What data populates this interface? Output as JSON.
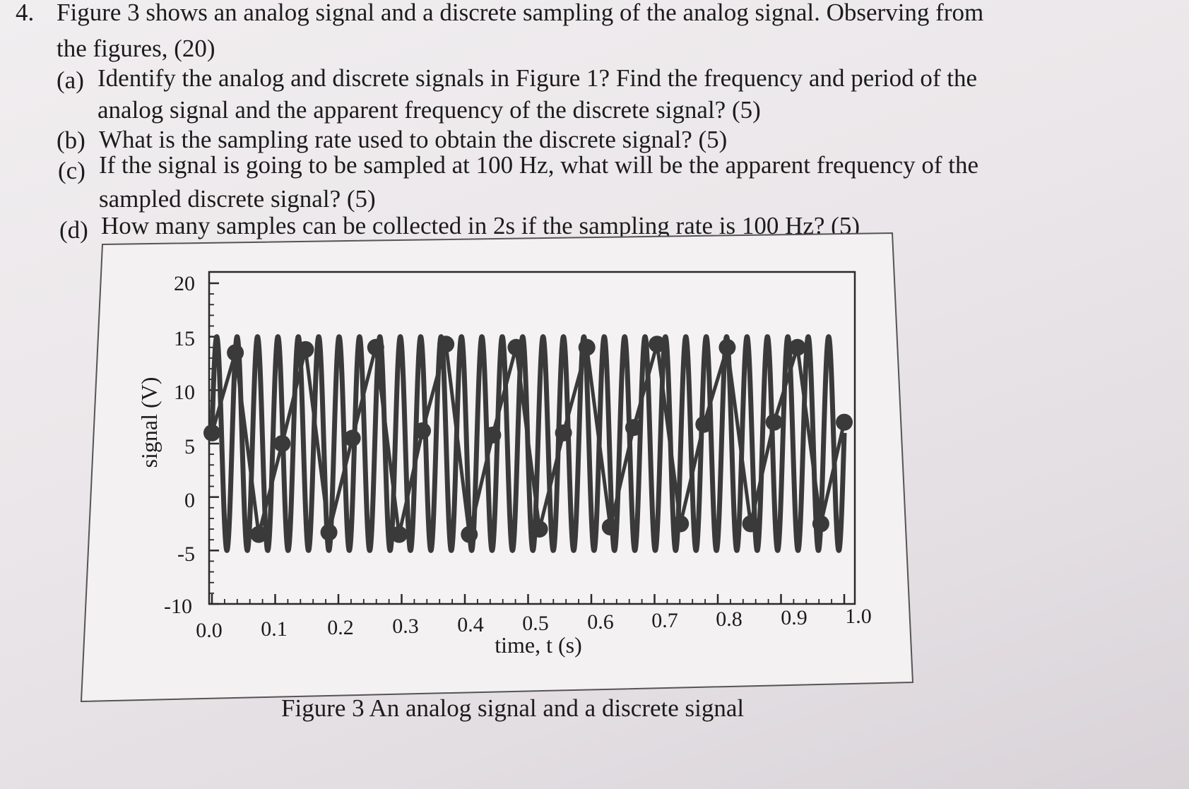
{
  "question": {
    "number": "4.",
    "intro_line1": "Figure 3 shows an analog signal and a discrete sampling of the analog signal. Observing from",
    "intro_line2": "the figures, (20)",
    "parts": [
      {
        "label": "(a)",
        "line1": "Identify the analog and discrete signals in Figure 1? Find the frequency and period of the",
        "line2": "analog signal and the apparent frequency of the discrete signal? (5)"
      },
      {
        "label": "(b)",
        "line1": "What is the sampling rate used to obtain the discrete signal? (5)",
        "line2": ""
      },
      {
        "label": "(c)",
        "line1": "If the signal is going to be sampled at 100 Hz, what will be the apparent frequency of the",
        "line2": "sampled discrete signal? (5)"
      },
      {
        "label": "(d)",
        "line1": "How many samples can be collected in 2s if the sampling rate is 100 Hz? (5)",
        "line2": ""
      }
    ]
  },
  "figure": {
    "caption": "Figure 3 An analog signal and a discrete signal"
  },
  "chart_data": {
    "type": "line",
    "title": "",
    "xlabel": "time, t (s)",
    "ylabel": "signal (V)",
    "xlim": [
      0.0,
      1.0
    ],
    "ylim": [
      -10,
      20
    ],
    "x_ticks": [
      "0.0",
      "0.1",
      "0.2",
      "0.3",
      "0.4",
      "0.5",
      "0.6",
      "0.7",
      "0.8",
      "0.9",
      "1.0"
    ],
    "y_ticks": [
      "20",
      "15",
      "10",
      "5",
      "0",
      "-5",
      "-10"
    ],
    "grid": false,
    "series": [
      {
        "kind": "analog",
        "function": "5 + 10*sin(2*pi*f*t + phase)",
        "frequency_hz": 31,
        "offset": 5,
        "amplitude": 10,
        "phase_rad": 0.1
      },
      {
        "kind": "discrete",
        "sampling_rate_hz": 27,
        "x": [
          0.0,
          0.037,
          0.074,
          0.111,
          0.148,
          0.185,
          0.222,
          0.259,
          0.296,
          0.333,
          0.37,
          0.407,
          0.444,
          0.481,
          0.518,
          0.556,
          0.593,
          0.63,
          0.667,
          0.704,
          0.741,
          0.778,
          0.815,
          0.852,
          0.889,
          0.926,
          0.963,
          1.0
        ],
        "y": [
          6.0,
          13.5,
          -3.5,
          5.0,
          13.8,
          -3.3,
          5.5,
          14.0,
          -3.5,
          6.2,
          14.3,
          -3.5,
          5.8,
          14.0,
          -3.0,
          6.0,
          14.0,
          -2.8,
          6.5,
          14.3,
          -2.5,
          6.8,
          14.0,
          -2.5,
          7.0,
          14.0,
          -2.5,
          7.0
        ]
      }
    ],
    "colors": {
      "ink": "#3a3a3a",
      "frame": "#2a2a2a"
    }
  }
}
